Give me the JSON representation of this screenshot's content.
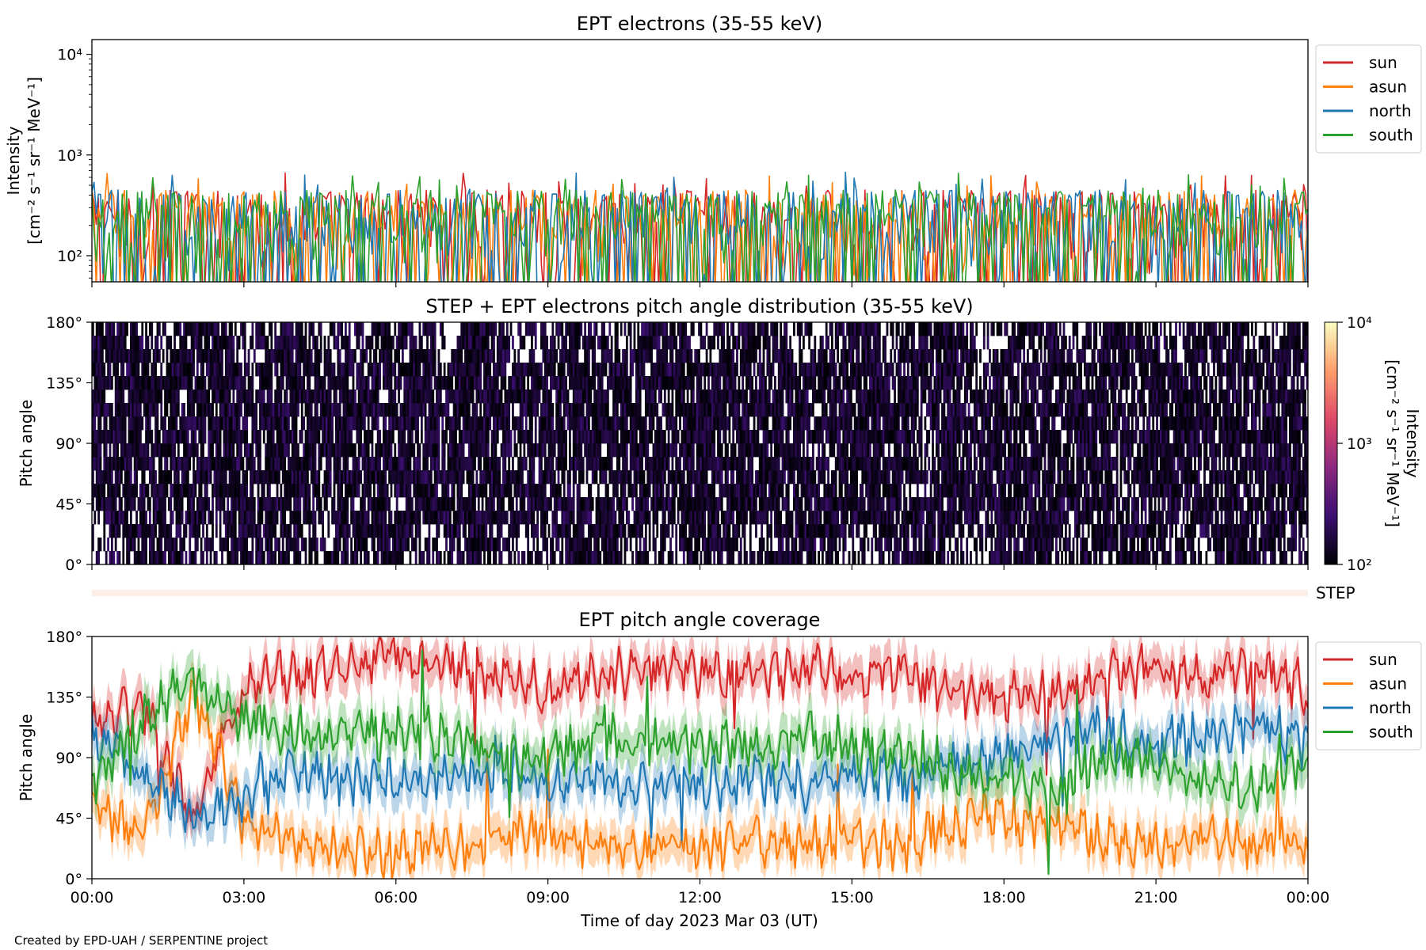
{
  "colors": {
    "sun": "#d62728",
    "asun": "#ff7f0e",
    "north": "#1f77b4",
    "south": "#2ca02c",
    "pad_cmap": [
      "#000004",
      "#3b0f70",
      "#8c2981",
      "#de4968",
      "#fe9f6d",
      "#fcfdbf"
    ],
    "step_strip": "#fdeee6"
  },
  "chart_data": [
    {
      "type": "line",
      "panel": "intensity",
      "title": "EPT electrons (35-55 keV)",
      "ylabel_line1": "Intensity",
      "ylabel_line2": "[cm⁻² s⁻¹ sr⁻¹ MeV⁻¹]",
      "yscale": "log",
      "ylim": [
        55,
        14000
      ],
      "y_ticks": [
        {
          "value": 100,
          "label": "10²"
        },
        {
          "value": 1000,
          "label": "10³"
        },
        {
          "value": 10000,
          "label": "10⁴"
        }
      ],
      "xlim_hours": [
        0,
        24
      ],
      "legend_position": "upper-right-outside",
      "series": [
        {
          "name": "sun",
          "color_key": "sun",
          "typical_range": [
            60,
            450
          ],
          "note_values": "dense noisy time series"
        },
        {
          "name": "asun",
          "color_key": "asun",
          "typical_range": [
            60,
            450
          ]
        },
        {
          "name": "north",
          "color_key": "north",
          "typical_range": [
            60,
            450
          ]
        },
        {
          "name": "south",
          "color_key": "south",
          "typical_range": [
            60,
            450
          ]
        }
      ]
    },
    {
      "type": "heatmap",
      "panel": "pitch_angle_distribution",
      "title": "STEP + EPT electrons pitch angle distribution (35-55 keV)",
      "ylabel": "Pitch angle",
      "ylim": [
        0,
        180
      ],
      "y_ticks": [
        {
          "value": 0,
          "label": "0°"
        },
        {
          "value": 45,
          "label": "45°"
        },
        {
          "value": 90,
          "label": "90°"
        },
        {
          "value": 135,
          "label": "135°"
        },
        {
          "value": 180,
          "label": "180°"
        }
      ],
      "colorbar": {
        "scale": "log",
        "range": [
          100,
          10000
        ],
        "label_line1": "Intensity",
        "label_line2": "[cm⁻² s⁻¹ sr⁻¹ MeV⁻¹]",
        "ticks": [
          {
            "value": 100,
            "label": "10²"
          },
          {
            "value": 1000,
            "label": "10³"
          },
          {
            "value": 10000,
            "label": "10⁴"
          }
        ]
      },
      "typical_intensity": [
        100,
        300
      ]
    },
    {
      "type": "strip",
      "panel": "step",
      "label": "STEP"
    },
    {
      "type": "line",
      "panel": "coverage",
      "title": "EPT pitch angle coverage",
      "ylabel": "Pitch angle",
      "ylim": [
        0,
        180
      ],
      "y_ticks": [
        {
          "value": 0,
          "label": "0°"
        },
        {
          "value": 45,
          "label": "45°"
        },
        {
          "value": 90,
          "label": "90°"
        },
        {
          "value": 135,
          "label": "135°"
        },
        {
          "value": 180,
          "label": "180°"
        }
      ],
      "xlabel": "Time of day 2023 Mar 03 (UT)",
      "x_ticks": [
        {
          "value": 0,
          "label": "00:00"
        },
        {
          "value": 3,
          "label": "03:00"
        },
        {
          "value": 6,
          "label": "06:00"
        },
        {
          "value": 9,
          "label": "09:00"
        },
        {
          "value": 12,
          "label": "12:00"
        },
        {
          "value": 15,
          "label": "15:00"
        },
        {
          "value": 18,
          "label": "18:00"
        },
        {
          "value": 21,
          "label": "21:00"
        },
        {
          "value": 24,
          "label": "00:00"
        }
      ],
      "legend_position": "upper-right-outside",
      "series": [
        {
          "name": "sun",
          "color_key": "sun",
          "x": [
            0,
            1,
            2,
            3,
            4,
            5,
            6,
            7,
            8,
            9,
            10,
            11,
            12,
            13,
            14,
            15,
            16,
            17,
            18,
            19,
            20,
            21,
            22,
            23,
            24
          ],
          "y": [
            115,
            130,
            40,
            145,
            150,
            160,
            165,
            160,
            150,
            140,
            150,
            155,
            155,
            150,
            155,
            150,
            155,
            140,
            135,
            140,
            150,
            155,
            150,
            155,
            140
          ]
        },
        {
          "name": "asun",
          "color_key": "asun",
          "x": [
            0,
            1,
            2,
            3,
            4,
            5,
            6,
            7,
            8,
            9,
            10,
            11,
            12,
            13,
            14,
            15,
            16,
            17,
            18,
            19,
            20,
            21,
            22,
            23,
            24
          ],
          "y": [
            55,
            30,
            140,
            40,
            25,
            25,
            20,
            25,
            30,
            35,
            25,
            25,
            25,
            30,
            25,
            30,
            25,
            40,
            45,
            40,
            30,
            25,
            35,
            25,
            30
          ]
        },
        {
          "name": "north",
          "color_key": "north",
          "x": [
            0,
            1,
            2,
            3,
            4,
            5,
            6,
            7,
            8,
            9,
            10,
            11,
            12,
            13,
            14,
            15,
            16,
            17,
            18,
            19,
            20,
            21,
            22,
            23,
            24
          ],
          "y": [
            110,
            75,
            45,
            60,
            80,
            75,
            70,
            75,
            80,
            75,
            75,
            70,
            70,
            75,
            70,
            75,
            75,
            80,
            90,
            105,
            110,
            95,
            110,
            115,
            100
          ]
        },
        {
          "name": "south",
          "color_key": "south",
          "x": [
            0,
            1,
            2,
            3,
            4,
            5,
            6,
            7,
            8,
            9,
            10,
            11,
            12,
            13,
            14,
            15,
            16,
            17,
            18,
            19,
            20,
            21,
            22,
            23,
            24
          ],
          "y": [
            70,
            115,
            150,
            115,
            110,
            105,
            110,
            105,
            95,
            90,
            105,
            100,
            100,
            100,
            105,
            100,
            95,
            80,
            75,
            70,
            85,
            90,
            70,
            70,
            85
          ]
        }
      ]
    }
  ],
  "credit": "Created by EPD-UAH / SERPENTINE project"
}
